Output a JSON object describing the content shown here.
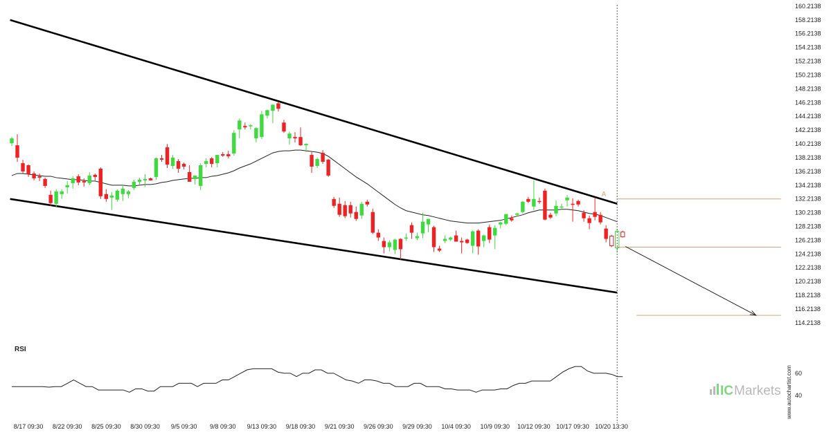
{
  "chart_data": {
    "type": "candlestick",
    "instrument_panel": {
      "y_ticks": [
        "160.2138",
        "158.2138",
        "156.2138",
        "154.2138",
        "152.2138",
        "150.2138",
        "148.2138",
        "146.2138",
        "144.2138",
        "142.2138",
        "140.2138",
        "138.2138",
        "136.2138",
        "134.2138",
        "132.2138",
        "130.2138",
        "128.2138",
        "126.2138",
        "124.2138",
        "122.2138",
        "120.2138",
        "118.2138",
        "116.2138",
        "114.2138"
      ],
      "ylim": [
        113.2,
        160.4
      ],
      "x_tick_labels": [
        {
          "label": "8/17 09:30",
          "index": 3
        },
        {
          "label": "8/22 09:30",
          "index": 10
        },
        {
          "label": "8/25 09:30",
          "index": 17
        },
        {
          "label": "8/30 09:30",
          "index": 24
        },
        {
          "label": "9/5 09:30",
          "index": 31
        },
        {
          "label": "9/8 09:30",
          "index": 38
        },
        {
          "label": "9/13 09:30",
          "index": 45
        },
        {
          "label": "9/18 09:30",
          "index": 52
        },
        {
          "label": "9/21 09:30",
          "index": 59
        },
        {
          "label": "9/26 09:30",
          "index": 66
        },
        {
          "label": "9/29 09:30",
          "index": 73
        },
        {
          "label": "10/4 09:30",
          "index": 80
        },
        {
          "label": "10/9 09:30",
          "index": 87
        },
        {
          "label": "10/12 09:30",
          "index": 94
        },
        {
          "label": "10/17 09:30",
          "index": 101
        },
        {
          "label": "10/20 13:30",
          "index": 108
        }
      ],
      "candles": [
        {
          "o": 140.3,
          "h": 141.2,
          "l": 139.9,
          "c": 141.0
        },
        {
          "o": 140.0,
          "h": 141.6,
          "l": 137.6,
          "c": 138.2
        },
        {
          "o": 137.4,
          "h": 137.9,
          "l": 135.9,
          "c": 136.2
        },
        {
          "o": 137.1,
          "h": 137.2,
          "l": 135.4,
          "c": 135.8
        },
        {
          "o": 135.9,
          "h": 136.2,
          "l": 134.9,
          "c": 135.2
        },
        {
          "o": 135.5,
          "h": 135.9,
          "l": 134.8,
          "c": 135.3
        },
        {
          "o": 135.1,
          "h": 135.3,
          "l": 133.8,
          "c": 134.1
        },
        {
          "o": 132.8,
          "h": 133.4,
          "l": 131.2,
          "c": 131.6
        },
        {
          "o": 131.5,
          "h": 133.6,
          "l": 131.0,
          "c": 133.3
        },
        {
          "o": 132.9,
          "h": 133.6,
          "l": 132.2,
          "c": 133.3
        },
        {
          "o": 133.9,
          "h": 134.8,
          "l": 133.0,
          "c": 134.2
        },
        {
          "o": 134.5,
          "h": 135.5,
          "l": 133.7,
          "c": 135.2
        },
        {
          "o": 135.5,
          "h": 135.8,
          "l": 134.2,
          "c": 134.6
        },
        {
          "o": 134.8,
          "h": 135.2,
          "l": 134.0,
          "c": 134.6
        },
        {
          "o": 134.5,
          "h": 136.1,
          "l": 134.2,
          "c": 135.6
        },
        {
          "o": 135.7,
          "h": 135.9,
          "l": 134.9,
          "c": 135.4
        },
        {
          "o": 136.6,
          "h": 136.8,
          "l": 132.2,
          "c": 132.6
        },
        {
          "o": 132.9,
          "h": 133.6,
          "l": 131.8,
          "c": 132.2
        },
        {
          "o": 132.4,
          "h": 133.2,
          "l": 130.6,
          "c": 132.7
        },
        {
          "o": 132.1,
          "h": 133.6,
          "l": 131.8,
          "c": 133.4
        },
        {
          "o": 132.9,
          "h": 134.3,
          "l": 131.9,
          "c": 133.7
        },
        {
          "o": 132.9,
          "h": 133.5,
          "l": 132.3,
          "c": 133.3
        },
        {
          "o": 133.8,
          "h": 135.0,
          "l": 133.5,
          "c": 134.7
        },
        {
          "o": 134.7,
          "h": 135.3,
          "l": 134.3,
          "c": 135.0
        },
        {
          "o": 134.9,
          "h": 135.8,
          "l": 134.0,
          "c": 135.1
        },
        {
          "o": 135.2,
          "h": 135.3,
          "l": 134.9,
          "c": 134.9
        },
        {
          "o": 135.4,
          "h": 138.2,
          "l": 135.0,
          "c": 138.1
        },
        {
          "o": 138.1,
          "h": 138.6,
          "l": 137.6,
          "c": 137.9
        },
        {
          "o": 139.7,
          "h": 140.2,
          "l": 136.7,
          "c": 137.2
        },
        {
          "o": 137.0,
          "h": 138.6,
          "l": 136.6,
          "c": 138.2
        },
        {
          "o": 137.7,
          "h": 138.0,
          "l": 136.0,
          "c": 136.6
        },
        {
          "o": 137.3,
          "h": 137.5,
          "l": 136.5,
          "c": 136.9
        },
        {
          "o": 136.1,
          "h": 137.1,
          "l": 135.0,
          "c": 134.7
        },
        {
          "o": 135.1,
          "h": 135.5,
          "l": 134.3,
          "c": 135.6
        },
        {
          "o": 134.1,
          "h": 137.4,
          "l": 133.5,
          "c": 137.1
        },
        {
          "o": 137.3,
          "h": 138.1,
          "l": 136.8,
          "c": 137.7
        },
        {
          "o": 138.1,
          "h": 138.3,
          "l": 136.8,
          "c": 137.3
        },
        {
          "o": 137.4,
          "h": 138.6,
          "l": 136.8,
          "c": 138.6
        },
        {
          "o": 138.7,
          "h": 139.0,
          "l": 138.3,
          "c": 138.5
        },
        {
          "o": 138.7,
          "h": 139.2,
          "l": 138.1,
          "c": 138.4
        },
        {
          "o": 138.8,
          "h": 142.2,
          "l": 138.5,
          "c": 141.8
        },
        {
          "o": 142.3,
          "h": 143.9,
          "l": 141.0,
          "c": 143.6
        },
        {
          "o": 142.8,
          "h": 143.3,
          "l": 142.3,
          "c": 142.6
        },
        {
          "o": 142.8,
          "h": 143.1,
          "l": 142.3,
          "c": 142.9
        },
        {
          "o": 141.0,
          "h": 142.6,
          "l": 140.4,
          "c": 142.5
        },
        {
          "o": 141.2,
          "h": 145.0,
          "l": 140.9,
          "c": 144.5
        },
        {
          "o": 144.3,
          "h": 145.2,
          "l": 143.9,
          "c": 145.1
        },
        {
          "o": 145.0,
          "h": 145.9,
          "l": 143.2,
          "c": 145.9
        },
        {
          "o": 146.1,
          "h": 146.3,
          "l": 144.9,
          "c": 145.3
        },
        {
          "o": 143.3,
          "h": 143.7,
          "l": 141.8,
          "c": 142.0
        },
        {
          "o": 141.0,
          "h": 142.0,
          "l": 140.1,
          "c": 141.7
        },
        {
          "o": 141.2,
          "h": 141.9,
          "l": 140.4,
          "c": 141.0
        },
        {
          "o": 141.2,
          "h": 142.6,
          "l": 139.9,
          "c": 140.0
        },
        {
          "o": 140.0,
          "h": 140.3,
          "l": 139.0,
          "c": 140.2
        },
        {
          "o": 138.6,
          "h": 139.0,
          "l": 136.0,
          "c": 136.9
        },
        {
          "o": 137.0,
          "h": 138.2,
          "l": 136.7,
          "c": 138.0
        },
        {
          "o": 138.9,
          "h": 139.3,
          "l": 137.3,
          "c": 137.6
        },
        {
          "o": 137.9,
          "h": 138.0,
          "l": 135.4,
          "c": 135.6
        },
        {
          "o": 132.2,
          "h": 132.5,
          "l": 130.9,
          "c": 131.2
        },
        {
          "o": 131.5,
          "h": 132.4,
          "l": 129.6,
          "c": 129.9
        },
        {
          "o": 131.3,
          "h": 131.9,
          "l": 129.4,
          "c": 129.7
        },
        {
          "o": 131.3,
          "h": 131.8,
          "l": 129.5,
          "c": 130.1
        },
        {
          "o": 130.3,
          "h": 131.1,
          "l": 129.0,
          "c": 129.3
        },
        {
          "o": 129.8,
          "h": 131.8,
          "l": 129.3,
          "c": 131.5
        },
        {
          "o": 131.8,
          "h": 132.1,
          "l": 131.1,
          "c": 131.4
        },
        {
          "o": 130.3,
          "h": 130.8,
          "l": 127.1,
          "c": 127.3
        },
        {
          "o": 127.3,
          "h": 127.8,
          "l": 126.1,
          "c": 126.6
        },
        {
          "o": 126.1,
          "h": 126.6,
          "l": 124.3,
          "c": 125.2
        },
        {
          "o": 125.2,
          "h": 126.2,
          "l": 124.6,
          "c": 125.9
        },
        {
          "o": 124.8,
          "h": 126.4,
          "l": 124.2,
          "c": 126.3
        },
        {
          "o": 126.4,
          "h": 126.5,
          "l": 123.4,
          "c": 124.9
        },
        {
          "o": 126.6,
          "h": 127.2,
          "l": 126.1,
          "c": 126.6
        },
        {
          "o": 128.4,
          "h": 128.8,
          "l": 126.4,
          "c": 127.3
        },
        {
          "o": 126.5,
          "h": 127.3,
          "l": 126.2,
          "c": 126.8
        },
        {
          "o": 127.2,
          "h": 130.2,
          "l": 126.5,
          "c": 128.9
        },
        {
          "o": 128.5,
          "h": 129.3,
          "l": 127.4,
          "c": 129.3
        },
        {
          "o": 128.1,
          "h": 128.3,
          "l": 124.5,
          "c": 125.2
        },
        {
          "o": 125.0,
          "h": 125.4,
          "l": 124.5,
          "c": 124.7
        },
        {
          "o": 126.1,
          "h": 126.9,
          "l": 125.8,
          "c": 126.4
        },
        {
          "o": 126.3,
          "h": 126.7,
          "l": 126.1,
          "c": 126.6
        },
        {
          "o": 126.9,
          "h": 127.6,
          "l": 126.4,
          "c": 126.0
        },
        {
          "o": 126.1,
          "h": 126.6,
          "l": 124.3,
          "c": 125.9
        },
        {
          "o": 126.3,
          "h": 126.4,
          "l": 125.7,
          "c": 125.8
        },
        {
          "o": 125.4,
          "h": 127.6,
          "l": 124.3,
          "c": 127.5
        },
        {
          "o": 127.6,
          "h": 127.8,
          "l": 124.1,
          "c": 125.3
        },
        {
          "o": 126.1,
          "h": 127.0,
          "l": 125.2,
          "c": 126.9
        },
        {
          "o": 128.1,
          "h": 128.5,
          "l": 125.8,
          "c": 126.3
        },
        {
          "o": 126.9,
          "h": 128.4,
          "l": 124.9,
          "c": 128.0
        },
        {
          "o": 128.5,
          "h": 128.9,
          "l": 127.9,
          "c": 128.8
        },
        {
          "o": 128.6,
          "h": 130.0,
          "l": 128.4,
          "c": 130.0
        },
        {
          "o": 129.4,
          "h": 129.8,
          "l": 128.9,
          "c": 129.1
        },
        {
          "o": 129.9,
          "h": 130.2,
          "l": 129.7,
          "c": 130.1
        },
        {
          "o": 130.3,
          "h": 131.9,
          "l": 130.1,
          "c": 131.8
        },
        {
          "o": 132.2,
          "h": 132.5,
          "l": 131.6,
          "c": 131.8
        },
        {
          "o": 131.1,
          "h": 134.9,
          "l": 130.6,
          "c": 132.2
        },
        {
          "o": 131.9,
          "h": 132.4,
          "l": 131.5,
          "c": 131.8
        },
        {
          "o": 133.4,
          "h": 133.7,
          "l": 129.1,
          "c": 129.2
        },
        {
          "o": 129.9,
          "h": 130.2,
          "l": 129.3,
          "c": 129.5
        },
        {
          "o": 130.1,
          "h": 132.0,
          "l": 129.7,
          "c": 131.2
        },
        {
          "o": 131.1,
          "h": 131.5,
          "l": 130.8,
          "c": 131.1
        },
        {
          "o": 132.0,
          "h": 132.8,
          "l": 131.1,
          "c": 132.4
        },
        {
          "o": 131.5,
          "h": 132.3,
          "l": 128.9,
          "c": 131.4
        },
        {
          "o": 131.9,
          "h": 132.1,
          "l": 131.1,
          "c": 131.4
        },
        {
          "o": 130.2,
          "h": 130.6,
          "l": 128.9,
          "c": 129.4
        },
        {
          "o": 129.4,
          "h": 129.8,
          "l": 127.8,
          "c": 128.7
        },
        {
          "o": 130.3,
          "h": 132.4,
          "l": 129.1,
          "c": 129.6
        },
        {
          "o": 129.9,
          "h": 130.3,
          "l": 128.5,
          "c": 128.8
        },
        {
          "o": 127.9,
          "h": 128.4,
          "l": 125.9,
          "c": 126.4
        },
        {
          "o": 126.8,
          "h": 127.0,
          "l": 125.2,
          "c": 125.4
        },
        {
          "o": 125.1,
          "h": 127.8,
          "l": 124.4,
          "c": 127.5
        },
        {
          "o": 127.4,
          "h": 127.6,
          "l": 126.6,
          "c": 126.7
        }
      ],
      "moving_average": [
        135.6,
        135.9,
        135.9,
        135.8,
        135.7,
        135.6,
        135.5,
        135.5,
        135.3,
        135.2,
        135.1,
        135.0,
        135.0,
        134.9,
        134.8,
        134.8,
        134.6,
        134.4,
        134.2,
        134.2,
        134.2,
        134.1,
        134.1,
        134.2,
        134.3,
        134.3,
        134.4,
        134.6,
        134.7,
        134.9,
        135.0,
        135.1,
        135.2,
        135.2,
        135.3,
        135.3,
        135.5,
        135.6,
        135.8,
        136.0,
        136.3,
        136.7,
        137.0,
        137.3,
        137.7,
        138.1,
        138.5,
        138.9,
        139.1,
        139.2,
        139.2,
        139.3,
        139.3,
        139.2,
        139.1,
        139.0,
        138.8,
        138.4,
        137.8,
        137.2,
        136.6,
        136.0,
        135.4,
        134.9,
        134.4,
        133.8,
        133.2,
        132.6,
        132.0,
        131.4,
        130.9,
        130.5,
        130.3,
        130.1,
        129.9,
        129.8,
        129.6,
        129.4,
        129.2,
        129.0,
        128.9,
        128.8,
        128.7,
        128.7,
        128.7,
        128.8,
        128.9,
        129.0,
        129.1,
        129.3,
        129.5,
        129.7,
        129.9,
        130.2,
        130.4,
        130.6,
        130.6,
        130.6,
        130.6,
        130.7,
        130.7,
        130.6,
        130.5,
        130.3,
        130.1,
        130.0,
        129.8,
        129.5,
        129.2,
        128.9
      ],
      "trendlines": [
        {
          "from": [
            -0.3,
            158.2
          ],
          "to": [
            109.0,
            131.5
          ]
        },
        {
          "from": [
            -0.3,
            132.2
          ],
          "to": [
            109.0,
            118.6
          ]
        }
      ],
      "projection_arrow": {
        "from": [
          110.5,
          125.3
        ],
        "to": [
          134.0,
          115.3
        ]
      },
      "marker_letter": "A",
      "marker_at": [
        106.6,
        132.6
      ],
      "levels": [
        {
          "value": 132.2,
          "from": 109.0,
          "to": 138.5
        },
        {
          "value": 125.2,
          "from": 109.0,
          "to": 138.5
        },
        {
          "value": 115.3,
          "from": 112.5,
          "to": 138.5
        }
      ],
      "current_time_index": 109.0
    },
    "rsi_panel": {
      "label": "RSI",
      "y_ticks": [
        "60",
        "40"
      ],
      "ylim": [
        24,
        76
      ],
      "values": [
        48,
        48,
        48,
        48,
        48,
        48,
        47.5,
        48,
        48,
        51,
        54,
        51,
        48,
        48,
        45,
        45,
        45,
        45,
        45,
        43,
        46,
        46,
        44,
        44,
        48,
        48,
        48,
        51,
        51,
        51,
        48,
        51,
        51,
        51,
        54,
        54,
        57,
        60,
        63,
        64,
        64,
        64,
        64,
        61,
        60,
        60,
        57,
        60,
        60,
        63,
        63,
        60,
        60,
        57,
        54,
        53,
        51,
        54,
        54,
        53,
        51,
        51,
        48,
        48,
        48,
        51,
        51,
        48,
        48,
        48,
        46,
        46,
        45,
        45,
        45,
        43,
        45,
        45,
        45,
        46,
        46,
        49,
        51,
        51,
        53,
        53,
        53,
        53,
        57,
        61,
        64,
        66,
        66,
        62,
        60,
        60,
        60,
        59,
        57,
        57
      ],
      "current_time_index": 109.0
    },
    "watermark": "www.autochartist.com",
    "logo_ic": "IC",
    "logo_markets": "Markets"
  }
}
